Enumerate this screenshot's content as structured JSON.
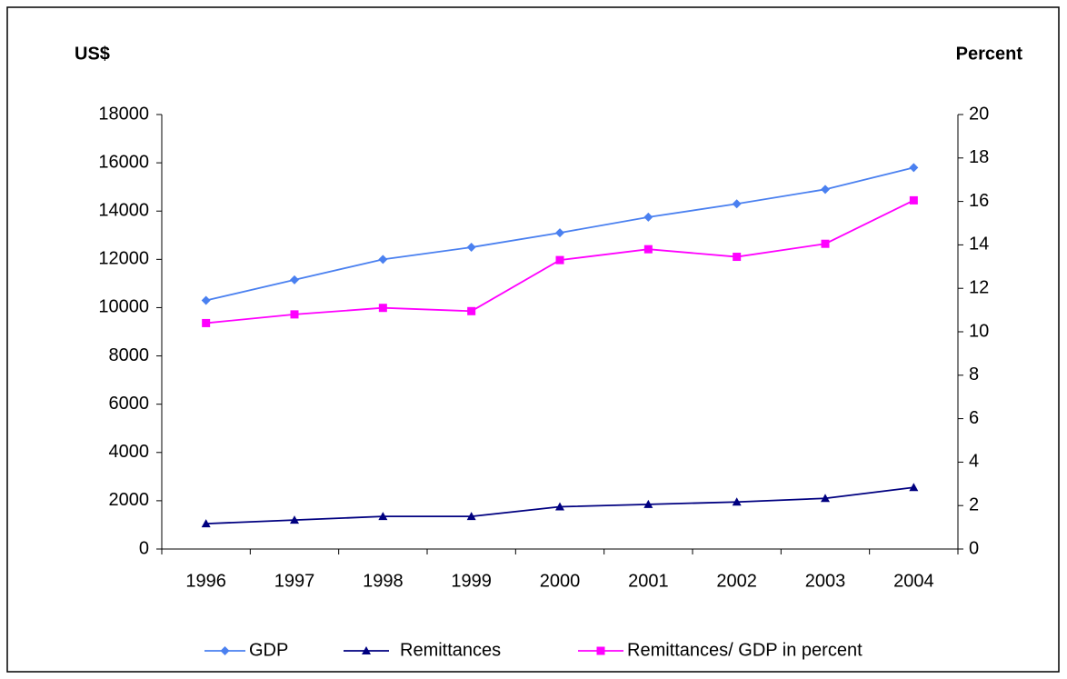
{
  "chart_data": {
    "type": "line",
    "y_label": "US$",
    "y2_label": "Percent",
    "categories": [
      "1996",
      "1997",
      "1998",
      "1999",
      "2000",
      "2001",
      "2002",
      "2003",
      "2004"
    ],
    "series": [
      {
        "name": "GDP",
        "color": "#4a80f0",
        "marker": "diamond",
        "values": [
          10300,
          11150,
          12000,
          12500,
          13100,
          13750,
          14300,
          14900,
          15800
        ]
      },
      {
        "name": "Remittances",
        "color": "#000080",
        "marker": "triangle",
        "values": [
          1050,
          1200,
          1350,
          1350,
          1750,
          1850,
          1950,
          2100,
          2550
        ]
      },
      {
        "name": "Remittances/ GDP in percent",
        "color": "#ff00ff",
        "marker": "square",
        "axis": "y2",
        "values": [
          10.4,
          10.8,
          11.1,
          10.95,
          13.3,
          13.8,
          13.45,
          14.05,
          16.05
        ]
      }
    ],
    "ylim": [
      0,
      18000
    ],
    "yticks": [
      0,
      2000,
      4000,
      6000,
      8000,
      10000,
      12000,
      14000,
      16000,
      18000
    ],
    "y2lim": [
      0,
      20
    ],
    "y2ticks": [
      0,
      2,
      4,
      6,
      8,
      10,
      12,
      14,
      16,
      18,
      20
    ],
    "grid": false,
    "legend": "bottom"
  }
}
